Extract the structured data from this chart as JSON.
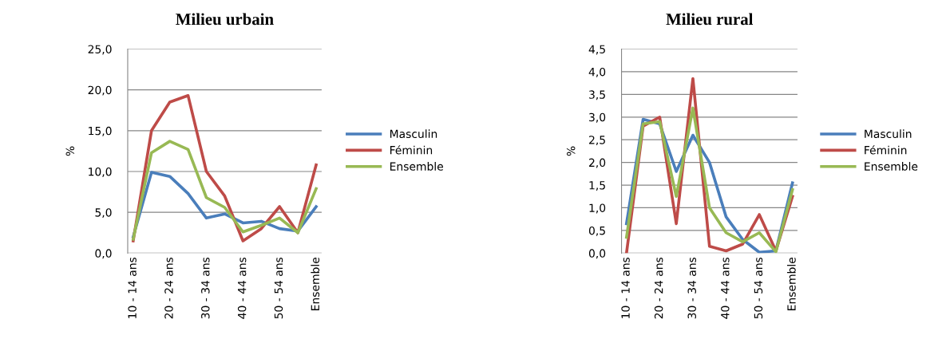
{
  "chart_data": [
    {
      "type": "line",
      "title": "Milieu urbain",
      "ylabel": "%",
      "categories": [
        "10 - 14 ans",
        null,
        "20 - 24 ans",
        null,
        "30 - 34 ans",
        null,
        "40 - 44 ans",
        null,
        "50 - 54 ans",
        null,
        "Ensemble"
      ],
      "series": [
        {
          "name": "Masculin",
          "color": "#4a7ebb",
          "values": [
            2.0,
            9.9,
            9.4,
            7.3,
            4.3,
            4.8,
            3.7,
            3.9,
            3.0,
            2.7,
            5.7
          ]
        },
        {
          "name": "Féminin",
          "color": "#be4b48",
          "values": [
            1.5,
            15.0,
            18.5,
            19.3,
            10.0,
            7.0,
            1.5,
            3.0,
            5.7,
            2.5,
            10.8
          ]
        },
        {
          "name": "Ensemble",
          "color": "#98b954",
          "values": [
            1.7,
            12.3,
            13.7,
            12.7,
            6.8,
            5.6,
            2.6,
            3.4,
            4.3,
            2.5,
            7.9
          ]
        }
      ],
      "ylim": [
        0,
        25
      ],
      "yticks": [
        {
          "value": 0,
          "label": "0,0"
        },
        {
          "value": 5,
          "label": "5,0"
        },
        {
          "value": 10,
          "label": "10,0"
        },
        {
          "value": 15,
          "label": "15,0"
        },
        {
          "value": 20,
          "label": "20,0"
        },
        {
          "value": 25,
          "label": "25,0"
        }
      ],
      "grid": "y",
      "legend": "right",
      "marker": "none",
      "line_style": "solid"
    },
    {
      "type": "line",
      "title": "Milieu rural",
      "ylabel": "%",
      "categories": [
        "10 - 14 ans",
        null,
        "20 - 24 ans",
        null,
        "30 - 34 ans",
        null,
        "40 - 44 ans",
        null,
        "50 - 54 ans",
        null,
        "Ensemble"
      ],
      "series": [
        {
          "name": "Masculin",
          "color": "#4a7ebb",
          "values": [
            0.65,
            2.95,
            2.85,
            1.8,
            2.6,
            2.0,
            0.8,
            0.3,
            0.02,
            0.05,
            1.55
          ]
        },
        {
          "name": "Féminin",
          "color": "#be4b48",
          "values": [
            0.0,
            2.8,
            3.0,
            0.65,
            3.85,
            0.15,
            0.05,
            0.2,
            0.85,
            0.05,
            1.25
          ]
        },
        {
          "name": "Ensemble",
          "color": "#98b954",
          "values": [
            0.35,
            2.85,
            2.9,
            1.25,
            3.2,
            1.0,
            0.45,
            0.25,
            0.45,
            0.03,
            1.4
          ]
        }
      ],
      "ylim": [
        0,
        4.5
      ],
      "yticks": [
        {
          "value": 0,
          "label": "0,0"
        },
        {
          "value": 0.5,
          "label": "0,5"
        },
        {
          "value": 1,
          "label": "1,0"
        },
        {
          "value": 1.5,
          "label": "1,5"
        },
        {
          "value": 2,
          "label": "2,0"
        },
        {
          "value": 2.5,
          "label": "2,5"
        },
        {
          "value": 3,
          "label": "3,0"
        },
        {
          "value": 3.5,
          "label": "3,5"
        },
        {
          "value": 4,
          "label": "4,0"
        },
        {
          "value": 4.5,
          "label": "4,5"
        }
      ],
      "grid": "y",
      "legend": "right",
      "marker": "none",
      "line_style": "solid"
    }
  ]
}
